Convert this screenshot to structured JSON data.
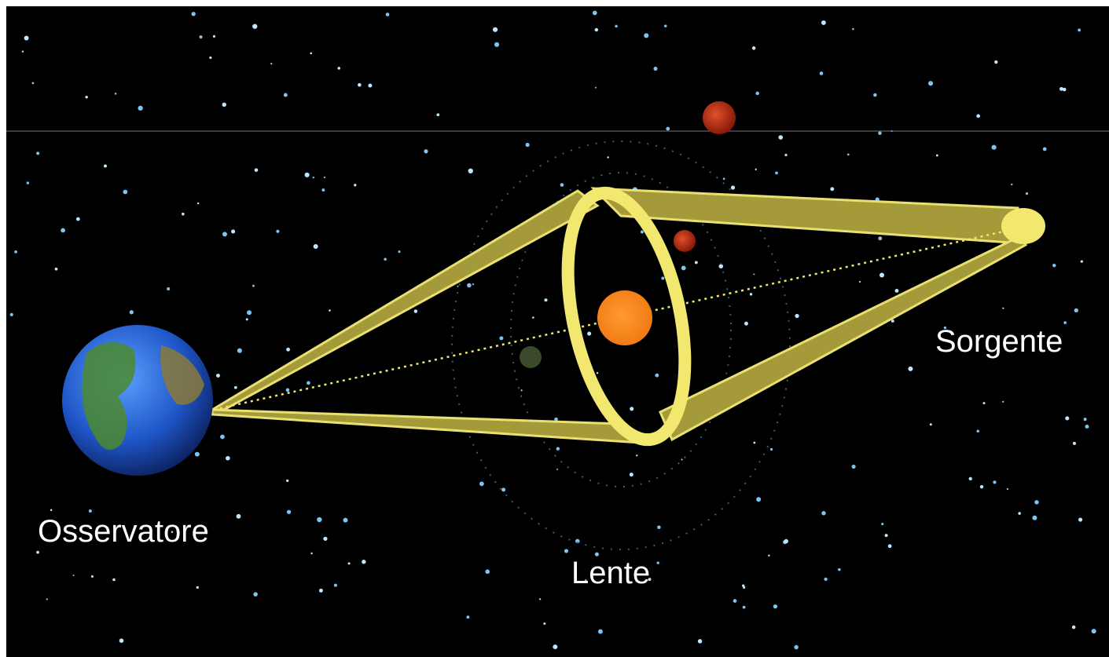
{
  "labels": {
    "observer": "Osservatore",
    "lens": "Lente",
    "source": "Sorgente"
  }
}
